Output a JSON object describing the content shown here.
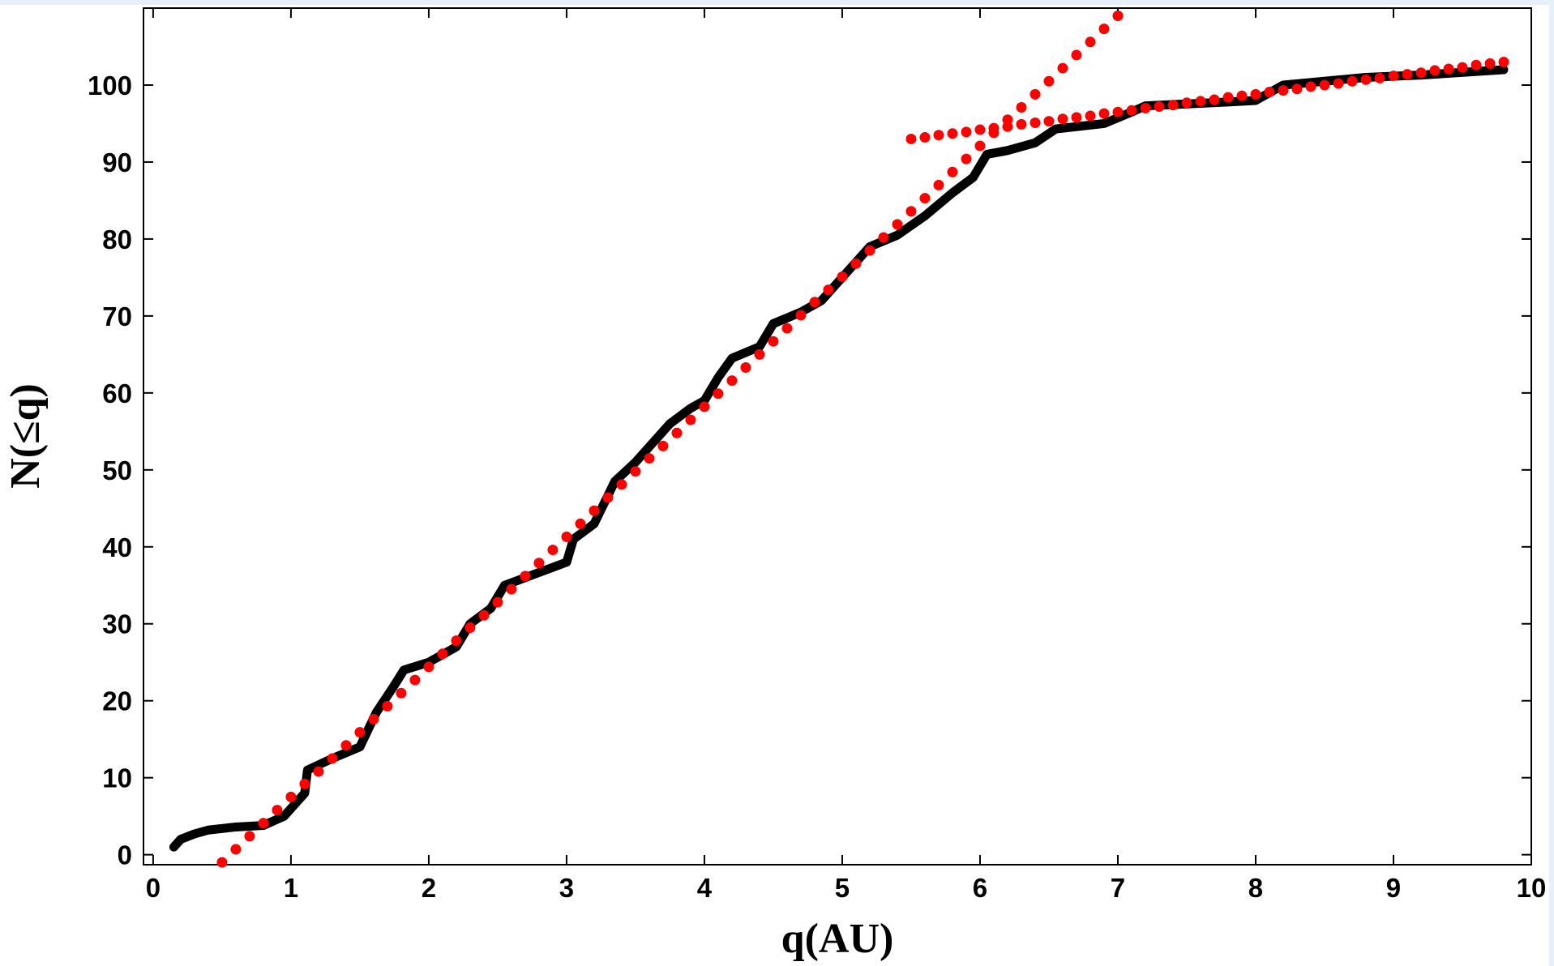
{
  "chart_data": {
    "type": "line",
    "xlabel": "q(AU)",
    "ylabel": "N(≤q)",
    "xlim": [
      -0.07,
      10
    ],
    "ylim": [
      -1.3,
      110
    ],
    "xticks": [
      0,
      1,
      2,
      3,
      4,
      5,
      6,
      7,
      8,
      9,
      10
    ],
    "yticks": [
      0,
      10,
      20,
      30,
      40,
      50,
      60,
      70,
      80,
      90,
      100
    ],
    "series": [
      {
        "mode": "line",
        "color": "#000000",
        "x": [
          0.15,
          0.2,
          0.3,
          0.4,
          0.6,
          0.8,
          0.95,
          1.1,
          1.12,
          1.3,
          1.5,
          1.62,
          1.75,
          1.82,
          2.0,
          2.2,
          2.3,
          2.45,
          2.55,
          2.7,
          2.85,
          3.0,
          3.05,
          3.2,
          3.35,
          3.5,
          3.6,
          3.75,
          3.9,
          4.0,
          4.1,
          4.2,
          4.4,
          4.5,
          4.7,
          4.85,
          5.0,
          5.2,
          5.4,
          5.6,
          5.8,
          5.95,
          6.05,
          6.2,
          6.4,
          6.55,
          6.9,
          7.1,
          7.2,
          7.8,
          8.0,
          8.2,
          8.8,
          9.2,
          9.8
        ],
        "values": [
          1,
          2,
          2.7,
          3.2,
          3.6,
          3.8,
          5,
          8,
          11,
          12.5,
          14,
          18.5,
          22,
          24,
          25,
          27,
          30,
          32,
          35,
          36,
          37,
          38,
          41,
          43,
          48.5,
          51,
          53,
          56,
          58,
          59,
          62,
          64.5,
          66,
          69,
          70.5,
          72,
          75,
          79,
          80.5,
          83,
          86,
          88,
          91,
          91.5,
          92.5,
          94.3,
          95,
          96.5,
          97.3,
          97.8,
          98,
          100,
          101,
          101.3,
          102
        ]
      },
      {
        "mode": "markers",
        "color": "#ff0000",
        "x": [
          0.5,
          0.6,
          0.7,
          0.8,
          0.9,
          1.0,
          1.1,
          1.2,
          1.3,
          1.4,
          1.5,
          1.6,
          1.7,
          1.8,
          1.9,
          2.0,
          2.1,
          2.2,
          2.3,
          2.4,
          2.5,
          2.6,
          2.7,
          2.8,
          2.9,
          3.0,
          3.1,
          3.2,
          3.3,
          3.4,
          3.5,
          3.6,
          3.7,
          3.8,
          3.9,
          4.0,
          4.1,
          4.2,
          4.3,
          4.4,
          4.5,
          4.6,
          4.7,
          4.8,
          4.9,
          5.0,
          5.1,
          5.2,
          5.3,
          5.4,
          5.5,
          5.6,
          5.7,
          5.8,
          5.9,
          6.0,
          6.1,
          6.2,
          6.3,
          6.4,
          6.5,
          6.6,
          6.7,
          6.8,
          6.9,
          7.0
        ],
        "values": [
          -1.0,
          0.7,
          2.4,
          4.1,
          5.8,
          7.5,
          9.2,
          10.8,
          12.5,
          14.2,
          15.9,
          17.6,
          19.3,
          21.0,
          22.7,
          24.4,
          26.1,
          27.8,
          29.5,
          31.1,
          32.8,
          34.5,
          36.2,
          37.9,
          39.6,
          41.3,
          43.0,
          44.7,
          46.4,
          48.1,
          49.8,
          51.5,
          53.1,
          54.8,
          56.5,
          58.2,
          59.9,
          61.6,
          63.3,
          65.0,
          66.7,
          68.4,
          70.1,
          71.8,
          73.4,
          75.1,
          76.8,
          78.5,
          80.2,
          81.9,
          83.6,
          85.3,
          87.0,
          88.7,
          90.4,
          92.1,
          93.8,
          95.5,
          97.1,
          98.8,
          100.5,
          102.2,
          103.9,
          105.6,
          107.3,
          109.0
        ]
      },
      {
        "mode": "markers",
        "color": "#ff0000",
        "x": [
          5.5,
          5.6,
          5.7,
          5.8,
          5.9,
          6.0,
          6.1,
          6.2,
          6.3,
          6.4,
          6.5,
          6.6,
          6.7,
          6.8,
          6.9,
          7.0,
          7.1,
          7.2,
          7.3,
          7.4,
          7.5,
          7.6,
          7.7,
          7.8,
          7.9,
          8.0,
          8.1,
          8.2,
          8.3,
          8.4,
          8.5,
          8.6,
          8.7,
          8.8,
          8.9,
          9.0,
          9.1,
          9.2,
          9.3,
          9.4,
          9.5,
          9.6,
          9.7,
          9.8
        ],
        "values": [
          93.0,
          93.2,
          93.5,
          93.7,
          93.9,
          94.2,
          94.4,
          94.6,
          94.9,
          95.1,
          95.3,
          95.6,
          95.8,
          96.0,
          96.3,
          96.5,
          96.7,
          97.0,
          97.2,
          97.4,
          97.7,
          97.9,
          98.1,
          98.4,
          98.6,
          98.8,
          99.1,
          99.3,
          99.5,
          99.8,
          100.0,
          100.2,
          100.5,
          100.7,
          100.9,
          101.2,
          101.4,
          101.6,
          101.9,
          102.1,
          102.3,
          102.6,
          102.8,
          103.0
        ]
      }
    ]
  }
}
